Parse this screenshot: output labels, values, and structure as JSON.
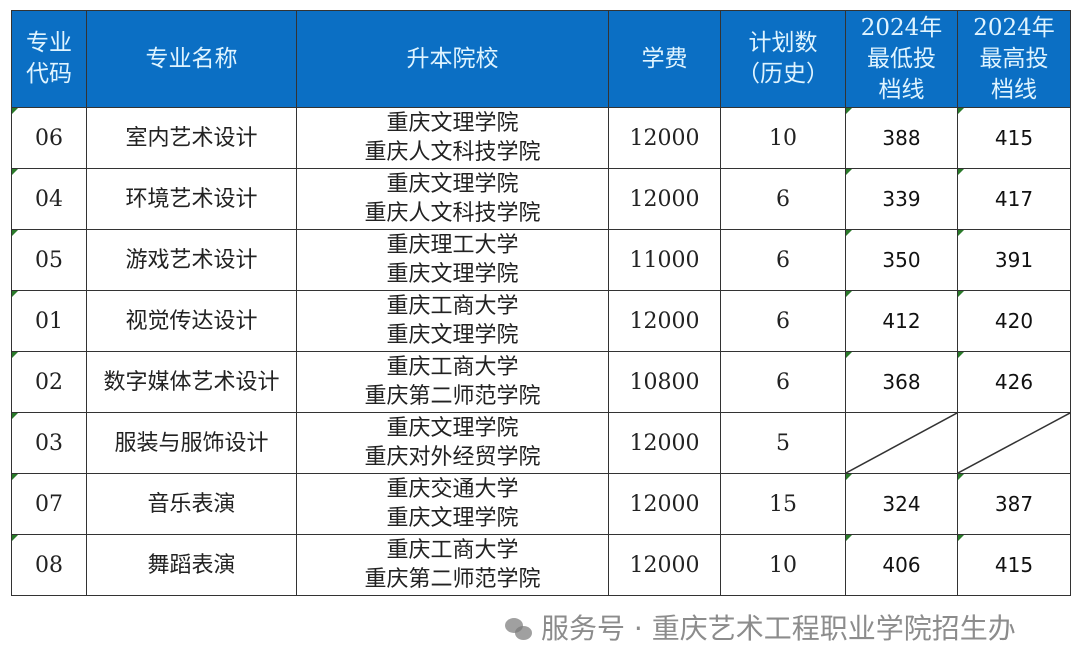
{
  "table": {
    "headers": [
      "专业代码",
      "专业名称",
      "升本院校",
      "学费",
      "计划数（历史）",
      "2024年最低投档线",
      "2024年最高投档线"
    ],
    "header_lines": [
      [
        "专业",
        "代码"
      ],
      [
        "专业名称"
      ],
      [
        "升本院校"
      ],
      [
        "学费"
      ],
      [
        "计划数",
        "（历史）"
      ],
      [
        "2024年",
        "最低投",
        "档线"
      ],
      [
        "2024年",
        "最高投",
        "档线"
      ]
    ],
    "rows": [
      {
        "code": "06",
        "name": "室内艺术设计",
        "schools": [
          "重庆文理学院",
          "重庆人文科技学院"
        ],
        "fee": "12000",
        "plan": "10",
        "min": "388",
        "max": "415"
      },
      {
        "code": "04",
        "name": "环境艺术设计",
        "schools": [
          "重庆文理学院",
          "重庆人文科技学院"
        ],
        "fee": "12000",
        "plan": "6",
        "min": "339",
        "max": "417"
      },
      {
        "code": "05",
        "name": "游戏艺术设计",
        "schools": [
          "重庆理工大学",
          "重庆文理学院"
        ],
        "fee": "11000",
        "plan": "6",
        "min": "350",
        "max": "391"
      },
      {
        "code": "01",
        "name": "视觉传达设计",
        "schools": [
          "重庆工商大学",
          "重庆文理学院"
        ],
        "fee": "12000",
        "plan": "6",
        "min": "412",
        "max": "420"
      },
      {
        "code": "02",
        "name": "数字媒体艺术设计",
        "schools": [
          "重庆工商大学",
          "重庆第二师范学院"
        ],
        "fee": "10800",
        "plan": "6",
        "min": "368",
        "max": "426"
      },
      {
        "code": "03",
        "name": "服装与服饰设计",
        "schools": [
          "重庆文理学院",
          "重庆对外经贸学院"
        ],
        "fee": "12000",
        "plan": "5",
        "min": null,
        "max": null
      },
      {
        "code": "07",
        "name": "音乐表演",
        "schools": [
          "重庆交通大学",
          "重庆文理学院"
        ],
        "fee": "12000",
        "plan": "15",
        "min": "324",
        "max": "387"
      },
      {
        "code": "08",
        "name": "舞蹈表演",
        "schools": [
          "重庆工商大学",
          "重庆第二师范学院"
        ],
        "fee": "12000",
        "plan": "10",
        "min": "406",
        "max": "415"
      }
    ]
  },
  "watermark": {
    "text": "服务号 · 重庆艺术工程职业学院招生办",
    "icon": "wechat-icon"
  },
  "colors": {
    "header_bg": "#0b6fc4",
    "header_text": "#dff4ff"
  }
}
